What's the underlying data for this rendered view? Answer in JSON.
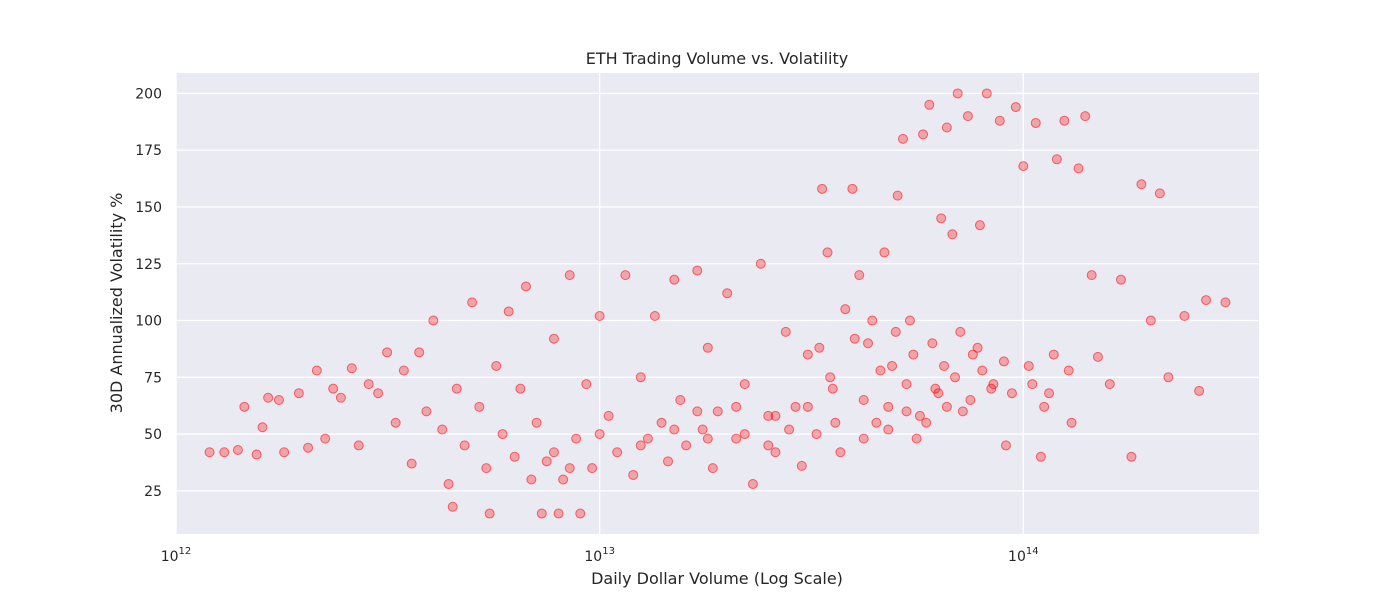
{
  "chart_data": {
    "type": "scatter",
    "title": "ETH Trading Volume vs. Volatility",
    "xlabel": "Daily Dollar Volume (Log Scale)",
    "ylabel": "30D Annualized Volatility %",
    "x_scale": "log",
    "xlim": [
      1000000000000,
      360000000000000
    ],
    "ylim": [
      6,
      209
    ],
    "x_ticks": [
      {
        "value": 1000000000000,
        "base": "10",
        "exp": "12"
      },
      {
        "value": 10000000000000,
        "base": "10",
        "exp": "13"
      },
      {
        "value": 100000000000000,
        "base": "10",
        "exp": "14"
      }
    ],
    "y_ticks": [
      25,
      50,
      75,
      100,
      125,
      150,
      175,
      200
    ],
    "grid": true,
    "colors": {
      "background": "#eaeaf2",
      "grid": "#ffffff",
      "points": "#ff0000"
    },
    "series": [
      {
        "points": [
          [
            1200000000000.0,
            42
          ],
          [
            1300000000000.0,
            42
          ],
          [
            1400000000000.0,
            43
          ],
          [
            1450000000000.0,
            62
          ],
          [
            1550000000000.0,
            41
          ],
          [
            1600000000000.0,
            53
          ],
          [
            1650000000000.0,
            66
          ],
          [
            1750000000000.0,
            65
          ],
          [
            1800000000000.0,
            42
          ],
          [
            1950000000000.0,
            68
          ],
          [
            2050000000000.0,
            44
          ],
          [
            2150000000000.0,
            78
          ],
          [
            2250000000000.0,
            48
          ],
          [
            2350000000000.0,
            70
          ],
          [
            2450000000000.0,
            66
          ],
          [
            2600000000000.0,
            79
          ],
          [
            2700000000000.0,
            45
          ],
          [
            2850000000000.0,
            72
          ],
          [
            3000000000000.0,
            68
          ],
          [
            3150000000000.0,
            86
          ],
          [
            3300000000000.0,
            55
          ],
          [
            3450000000000.0,
            78
          ],
          [
            3600000000000.0,
            37
          ],
          [
            3750000000000.0,
            86
          ],
          [
            3900000000000.0,
            60
          ],
          [
            4050000000000.0,
            100
          ],
          [
            4250000000000.0,
            52
          ],
          [
            4400000000000.0,
            28
          ],
          [
            4500000000000.0,
            18
          ],
          [
            4600000000000.0,
            70
          ],
          [
            4800000000000.0,
            45
          ],
          [
            5000000000000.0,
            108
          ],
          [
            5200000000000.0,
            62
          ],
          [
            5400000000000.0,
            35
          ],
          [
            5500000000000.0,
            15
          ],
          [
            5700000000000.0,
            80
          ],
          [
            5900000000000.0,
            50
          ],
          [
            6100000000000.0,
            104
          ],
          [
            6300000000000.0,
            40
          ],
          [
            6500000000000.0,
            70
          ],
          [
            6700000000000.0,
            115
          ],
          [
            6900000000000.0,
            30
          ],
          [
            7100000000000.0,
            55
          ],
          [
            7300000000000.0,
            15
          ],
          [
            7500000000000.0,
            38
          ],
          [
            7800000000000.0,
            92
          ],
          [
            8000000000000.0,
            15
          ],
          [
            8200000000000.0,
            30
          ],
          [
            8500000000000.0,
            120
          ],
          [
            8800000000000.0,
            48
          ],
          [
            9000000000000.0,
            15
          ],
          [
            9300000000000.0,
            72
          ],
          [
            9600000000000.0,
            35
          ],
          [
            10000000000000.0,
            102
          ],
          [
            10500000000000.0,
            58
          ],
          [
            11000000000000.0,
            42
          ],
          [
            11500000000000.0,
            120
          ],
          [
            12000000000000.0,
            32
          ],
          [
            12500000000000.0,
            75
          ],
          [
            13000000000000.0,
            48
          ],
          [
            13500000000000.0,
            102
          ],
          [
            14000000000000.0,
            55
          ],
          [
            14500000000000.0,
            38
          ],
          [
            15000000000000.0,
            118
          ],
          [
            15500000000000.0,
            65
          ],
          [
            16000000000000.0,
            45
          ],
          [
            17000000000000.0,
            122
          ],
          [
            17500000000000.0,
            52
          ],
          [
            18000000000000.0,
            88
          ],
          [
            18500000000000.0,
            35
          ],
          [
            19000000000000.0,
            60
          ],
          [
            20000000000000.0,
            112
          ],
          [
            21000000000000.0,
            48
          ],
          [
            22000000000000.0,
            72
          ],
          [
            23000000000000.0,
            28
          ],
          [
            24000000000000.0,
            125
          ],
          [
            25000000000000.0,
            58
          ],
          [
            26000000000000.0,
            42
          ],
          [
            27500000000000.0,
            95
          ],
          [
            29000000000000.0,
            62
          ],
          [
            30000000000000.0,
            36
          ],
          [
            31000000000000.0,
            85
          ],
          [
            32500000000000.0,
            50
          ],
          [
            33500000000000.0,
            158
          ],
          [
            34500000000000.0,
            130
          ],
          [
            35500000000000.0,
            70
          ],
          [
            37000000000000.0,
            42
          ],
          [
            38000000000000.0,
            105
          ],
          [
            39500000000000.0,
            158
          ],
          [
            41000000000000.0,
            120
          ],
          [
            43000000000000.0,
            90
          ],
          [
            45000000000000.0,
            55
          ],
          [
            47000000000000.0,
            130
          ],
          [
            49000000000000.0,
            80
          ],
          [
            50500000000000.0,
            155
          ],
          [
            52000000000000.0,
            180
          ],
          [
            54000000000000.0,
            100
          ],
          [
            56000000000000.0,
            48
          ],
          [
            58000000000000.0,
            182
          ],
          [
            60000000000000.0,
            195
          ],
          [
            62000000000000.0,
            70
          ],
          [
            64000000000000.0,
            145
          ],
          [
            66000000000000.0,
            185
          ],
          [
            68000000000000.0,
            138
          ],
          [
            70000000000000.0,
            200
          ],
          [
            72000000000000.0,
            60
          ],
          [
            74000000000000.0,
            190
          ],
          [
            76000000000000.0,
            85
          ],
          [
            79000000000000.0,
            142
          ],
          [
            82000000000000.0,
            200
          ],
          [
            85000000000000.0,
            72
          ],
          [
            88000000000000.0,
            188
          ],
          [
            91000000000000.0,
            45
          ],
          [
            96000000000000.0,
            194
          ],
          [
            100000000000000.0,
            168
          ],
          [
            103000000000000.0,
            80
          ],
          [
            107000000000000.0,
            187
          ],
          [
            110000000000000.0,
            40
          ],
          [
            115000000000000.0,
            68
          ],
          [
            120000000000000.0,
            171
          ],
          [
            125000000000000.0,
            188
          ],
          [
            130000000000000.0,
            55
          ],
          [
            135000000000000.0,
            167
          ],
          [
            140000000000000.0,
            190
          ],
          [
            145000000000000.0,
            120
          ],
          [
            150000000000000.0,
            84
          ],
          [
            160000000000000.0,
            72
          ],
          [
            170000000000000.0,
            118
          ],
          [
            180000000000000.0,
            40
          ],
          [
            190000000000000.0,
            160
          ],
          [
            200000000000000.0,
            100
          ],
          [
            210000000000000.0,
            156
          ],
          [
            220000000000000.0,
            75
          ],
          [
            240000000000000.0,
            102
          ],
          [
            260000000000000.0,
            69
          ],
          [
            270000000000000.0,
            109
          ],
          [
            300000000000000.0,
            108
          ],
          [
            33000000000000.0,
            88
          ],
          [
            35000000000000.0,
            75
          ],
          [
            40000000000000.0,
            92
          ],
          [
            42000000000000.0,
            65
          ],
          [
            44000000000000.0,
            100
          ],
          [
            46000000000000.0,
            78
          ],
          [
            48000000000000.0,
            62
          ],
          [
            50000000000000.0,
            95
          ],
          [
            53000000000000.0,
            72
          ],
          [
            55000000000000.0,
            85
          ],
          [
            57000000000000.0,
            58
          ],
          [
            61000000000000.0,
            90
          ],
          [
            63000000000000.0,
            68
          ],
          [
            65000000000000.0,
            80
          ],
          [
            69000000000000.0,
            75
          ],
          [
            71000000000000.0,
            95
          ],
          [
            75000000000000.0,
            65
          ],
          [
            78000000000000.0,
            88
          ],
          [
            80000000000000.0,
            78
          ],
          [
            84000000000000.0,
            70
          ],
          [
            90000000000000.0,
            82
          ],
          [
            94000000000000.0,
            68
          ],
          [
            105000000000000.0,
            72
          ],
          [
            112000000000000.0,
            62
          ],
          [
            118000000000000.0,
            85
          ],
          [
            128000000000000.0,
            78
          ],
          [
            22000000000000.0,
            50
          ],
          [
            25000000000000.0,
            45
          ],
          [
            28000000000000.0,
            52
          ],
          [
            15000000000000.0,
            52
          ],
          [
            17000000000000.0,
            60
          ],
          [
            12500000000000.0,
            45
          ],
          [
            10000000000000.0,
            50
          ],
          [
            8500000000000.0,
            35
          ],
          [
            7800000000000.0,
            42
          ],
          [
            18000000000000.0,
            48
          ],
          [
            21000000000000.0,
            62
          ],
          [
            26000000000000.0,
            58
          ],
          [
            31000000000000.0,
            62
          ],
          [
            36000000000000.0,
            55
          ],
          [
            42000000000000.0,
            48
          ],
          [
            48000000000000.0,
            52
          ],
          [
            53000000000000.0,
            60
          ],
          [
            59000000000000.0,
            55
          ],
          [
            66000000000000.0,
            62
          ]
        ]
      }
    ]
  }
}
